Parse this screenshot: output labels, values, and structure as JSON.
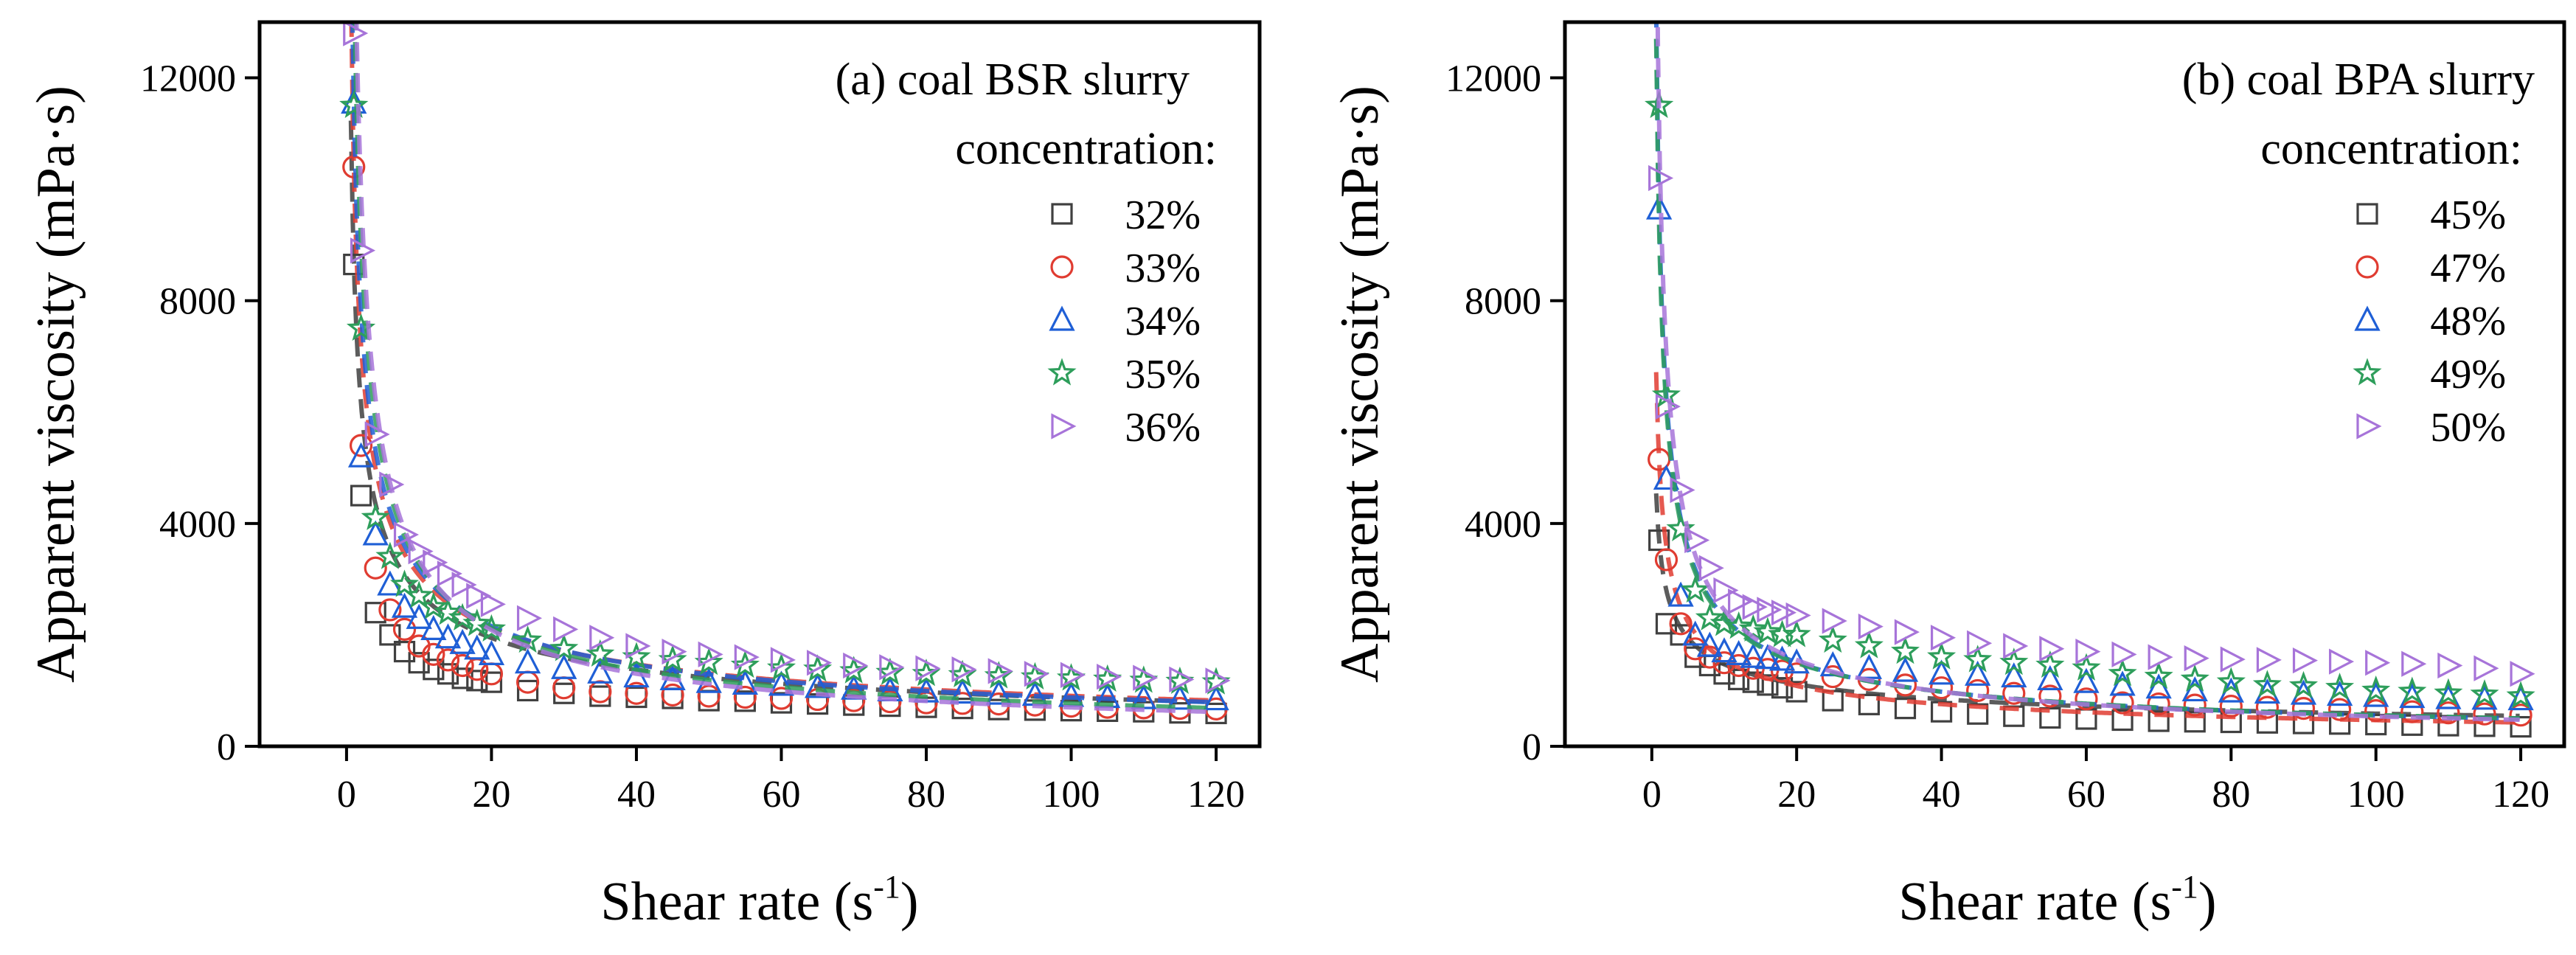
{
  "chart_data": [
    {
      "type": "scatter",
      "panel_title": "(a) coal BSR slurry",
      "legend_title": "concentration:",
      "xlabel": "Shear rate (s",
      "xlabel_sup": "-1",
      "xlabel_close": ")",
      "ylabel": "Apparent viscosity (mPa·s)",
      "xlim": [
        -12,
        126
      ],
      "ylim": [
        0,
        13000
      ],
      "xticks": [
        0,
        20,
        40,
        60,
        80,
        100,
        120
      ],
      "yticks": [
        0,
        4000,
        8000,
        12000
      ],
      "x": [
        1,
        2,
        4,
        6,
        8,
        10,
        12,
        14,
        16,
        18,
        20,
        25,
        30,
        35,
        40,
        45,
        50,
        55,
        60,
        65,
        70,
        75,
        80,
        85,
        90,
        95,
        100,
        105,
        110,
        115,
        120
      ],
      "series": [
        {
          "name": "32%",
          "marker": "square",
          "color": "#404040",
          "a": 8700,
          "n": 0.5,
          "values": [
            8650,
            4500,
            2400,
            2000,
            1700,
            1500,
            1380,
            1300,
            1220,
            1180,
            1150,
            1000,
            950,
            900,
            880,
            860,
            820,
            810,
            780,
            760,
            740,
            720,
            700,
            680,
            660,
            650,
            640,
            630,
            620,
            600,
            590
          ]
        },
        {
          "name": "33%",
          "marker": "circle",
          "color": "#e03c31",
          "a": 10400,
          "n": 0.53,
          "values": [
            10400,
            5400,
            3200,
            2450,
            2100,
            1800,
            1650,
            1550,
            1450,
            1380,
            1300,
            1150,
            1050,
            980,
            950,
            920,
            900,
            880,
            860,
            840,
            820,
            800,
            780,
            770,
            760,
            740,
            720,
            700,
            690,
            680,
            670
          ]
        },
        {
          "name": "34%",
          "marker": "triangle-up",
          "color": "#1f5fd6",
          "a": 11550,
          "n": 0.56,
          "values": [
            11550,
            5200,
            3800,
            2900,
            2500,
            2300,
            2100,
            1950,
            1850,
            1750,
            1650,
            1500,
            1400,
            1320,
            1250,
            1200,
            1150,
            1120,
            1100,
            1060,
            1030,
            1000,
            980,
            960,
            940,
            920,
            900,
            880,
            860,
            850,
            840
          ]
        },
        {
          "name": "35%",
          "marker": "star",
          "color": "#2e9e5b",
          "a": 14000,
          "n": 0.63,
          "values": [
            11500,
            7500,
            4100,
            3400,
            2900,
            2700,
            2500,
            2400,
            2300,
            2200,
            2100,
            1900,
            1750,
            1650,
            1600,
            1550,
            1500,
            1450,
            1400,
            1380,
            1350,
            1320,
            1300,
            1280,
            1260,
            1240,
            1220,
            1200,
            1180,
            1160,
            1150
          ]
        },
        {
          "name": "36%",
          "marker": "triangle-right",
          "color": "#a774d9",
          "a": 16000,
          "n": 0.68,
          "values": [
            12800,
            8900,
            5600,
            4700,
            3800,
            3500,
            3300,
            3100,
            2900,
            2700,
            2550,
            2300,
            2100,
            1950,
            1800,
            1700,
            1650,
            1600,
            1550,
            1500,
            1450,
            1420,
            1400,
            1380,
            1350,
            1300,
            1280,
            1250,
            1230,
            1200,
            1180
          ]
        }
      ]
    },
    {
      "type": "scatter",
      "panel_title": "(b) coal BPA slurry",
      "legend_title": "concentration:",
      "xlabel": "Shear rate (s",
      "xlabel_sup": "-1",
      "xlabel_close": ")",
      "ylabel": "Apparent viscosity (mPa·s)",
      "xlim": [
        -12,
        126
      ],
      "ylim": [
        0,
        13000
      ],
      "xticks": [
        0,
        20,
        40,
        60,
        80,
        100,
        120
      ],
      "yticks": [
        0,
        4000,
        8000,
        12000
      ],
      "x": [
        1,
        2,
        4,
        6,
        8,
        10,
        12,
        14,
        16,
        18,
        20,
        25,
        30,
        35,
        40,
        45,
        50,
        55,
        60,
        65,
        70,
        75,
        80,
        85,
        90,
        95,
        100,
        105,
        110,
        115,
        120
      ],
      "series": [
        {
          "name": "45%",
          "marker": "square",
          "color": "#404040",
          "a": 3700,
          "n": 0.4,
          "values": [
            3700,
            2200,
            2000,
            1600,
            1450,
            1300,
            1200,
            1150,
            1100,
            1050,
            980,
            820,
            750,
            680,
            620,
            580,
            540,
            510,
            490,
            470,
            450,
            440,
            430,
            420,
            410,
            400,
            390,
            380,
            370,
            360,
            350
          ]
        },
        {
          "name": "47%",
          "marker": "circle",
          "color": "#e03c31",
          "a": 5150,
          "n": 0.52,
          "values": [
            5150,
            3350,
            2200,
            1750,
            1600,
            1500,
            1450,
            1400,
            1380,
            1350,
            1300,
            1250,
            1200,
            1100,
            1050,
            1000,
            950,
            900,
            850,
            780,
            760,
            740,
            720,
            700,
            680,
            660,
            640,
            620,
            600,
            580,
            560
          ]
        },
        {
          "name": "48%",
          "marker": "triangle-up",
          "color": "#1f5fd6",
          "a": 9650,
          "n": 0.62,
          "values": [
            9650,
            4800,
            2700,
            2000,
            1800,
            1700,
            1650,
            1600,
            1580,
            1550,
            1500,
            1450,
            1400,
            1350,
            1300,
            1280,
            1250,
            1200,
            1150,
            1100,
            1050,
            1000,
            980,
            960,
            940,
            920,
            900,
            880,
            860,
            850,
            840
          ]
        },
        {
          "name": "49%",
          "marker": "star",
          "color": "#2e9e5b",
          "a": 9300,
          "n": 0.61,
          "values": [
            11500,
            6300,
            3900,
            2800,
            2300,
            2200,
            2150,
            2100,
            2050,
            2000,
            2000,
            1900,
            1800,
            1700,
            1600,
            1550,
            1500,
            1450,
            1400,
            1300,
            1250,
            1200,
            1150,
            1100,
            1080,
            1050,
            1000,
            980,
            950,
            930,
            900
          ]
        },
        {
          "name": "50%",
          "marker": "triangle-right",
          "color": "#a774d9",
          "a": 11200,
          "n": 0.66,
          "values": [
            10200,
            6100,
            4600,
            3700,
            3200,
            2800,
            2600,
            2500,
            2450,
            2400,
            2350,
            2250,
            2150,
            2050,
            1950,
            1850,
            1800,
            1750,
            1700,
            1650,
            1600,
            1580,
            1560,
            1550,
            1540,
            1520,
            1500,
            1480,
            1450,
            1400,
            1300
          ]
        }
      ]
    }
  ]
}
